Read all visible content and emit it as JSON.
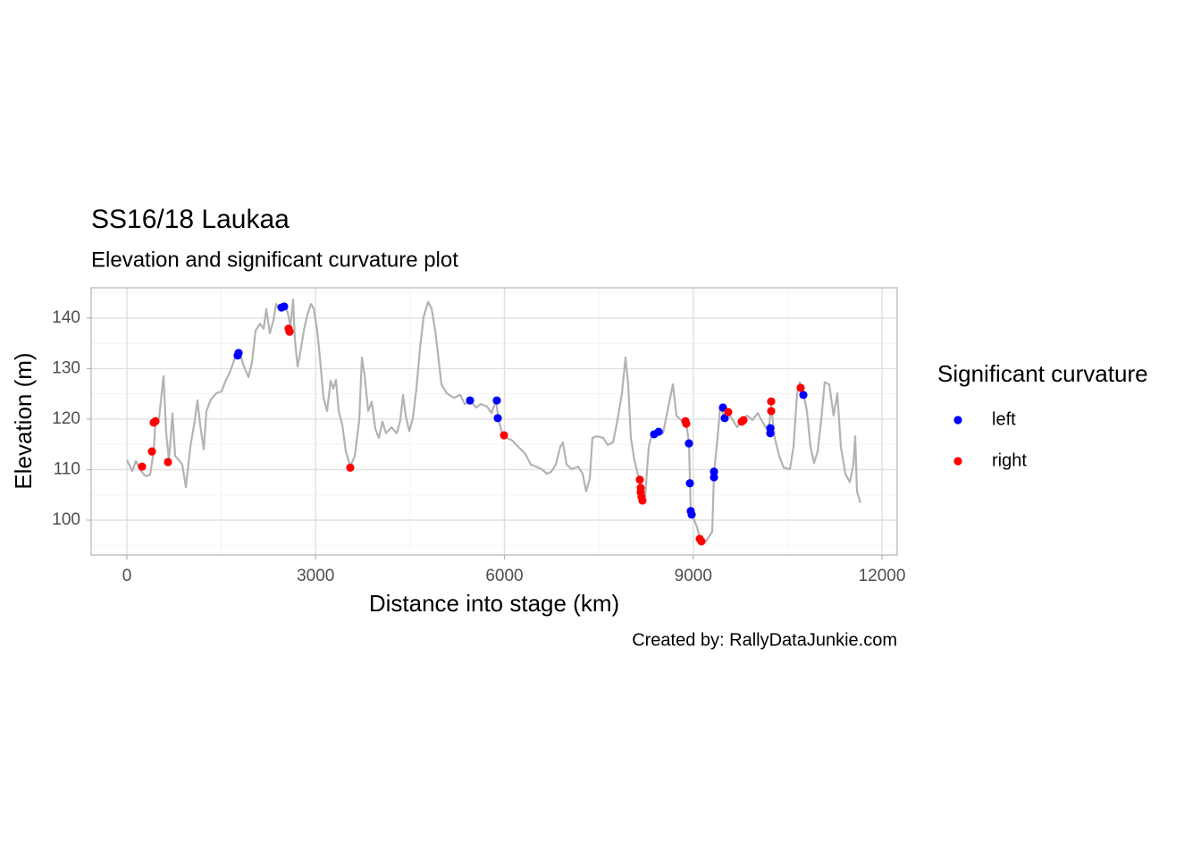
{
  "chart_data": {
    "type": "line",
    "title": "SS16/18 Laukaa",
    "subtitle": "Elevation and significant curvature plot",
    "caption": "Created by: RallyDataJunkie.com",
    "x_label": "Distance into stage (km)",
    "y_label": "Elevation (m)",
    "legend_title": "Significant curvature",
    "legend_position": "right",
    "grid": true,
    "xlim": [
      -568,
      12241
    ],
    "ylim": [
      93.1,
      146.0
    ],
    "xticks": [
      0,
      3000,
      6000,
      9000,
      12000
    ],
    "yticks": [
      100,
      110,
      120,
      130,
      140
    ],
    "xminor": [
      1500,
      4500,
      7500,
      10500
    ],
    "yminor": [
      95,
      105,
      115,
      125,
      135,
      145
    ],
    "profile": {
      "color": "#b3b3b3",
      "x": [
        0,
        85,
        142,
        227,
        298,
        369,
        426,
        454,
        511,
        582,
        625,
        667,
        696,
        724,
        767,
        824,
        880,
        937,
        1008,
        1079,
        1122,
        1165,
        1221,
        1264,
        1335,
        1420,
        1505,
        1576,
        1647,
        1718,
        1789,
        1860,
        1931,
        1988,
        2045,
        2116,
        2173,
        2215,
        2272,
        2329,
        2372,
        2428,
        2499,
        2556,
        2599,
        2641,
        2670,
        2712,
        2755,
        2812,
        2869,
        2926,
        2968,
        3025,
        3067,
        3124,
        3181,
        3238,
        3280,
        3323,
        3366,
        3422,
        3479,
        3550,
        3621,
        3692,
        3735,
        3777,
        3834,
        3891,
        3948,
        4005,
        4062,
        4118,
        4203,
        4289,
        4346,
        4388,
        4431,
        4488,
        4544,
        4601,
        4658,
        4715,
        4786,
        4843,
        4900,
        4942,
        4999,
        5084,
        5198,
        5297,
        5368,
        5467,
        5553,
        5624,
        5723,
        5794,
        5865,
        5908,
        5964,
        6035,
        6121,
        6220,
        6334,
        6419,
        6504,
        6589,
        6674,
        6746,
        6817,
        6888,
        6930,
        6987,
        7072,
        7172,
        7243,
        7299,
        7356,
        7399,
        7470,
        7569,
        7640,
        7725,
        7796,
        7867,
        7924,
        7966,
        8009,
        8065,
        8151,
        8179,
        8236,
        8293,
        8349,
        8435,
        8520,
        8605,
        8676,
        8733,
        8804,
        8889,
        8932,
        8960,
        9003,
        9060,
        9117,
        9202,
        9301,
        9330,
        9386,
        9429,
        9486,
        9557,
        9628,
        9699,
        9770,
        9855,
        9940,
        10026,
        10125,
        10196,
        10239,
        10296,
        10367,
        10438,
        10537,
        10594,
        10650,
        10693,
        10750,
        10807,
        10863,
        10920,
        10977,
        11034,
        11090,
        11161,
        11232,
        11289,
        11346,
        11417,
        11488,
        11545,
        11574,
        11602,
        11659
      ],
      "values": [
        111.9,
        109.7,
        111.7,
        109.7,
        108.7,
        109,
        113.6,
        119.8,
        120.2,
        128.5,
        117.2,
        111.9,
        116.3,
        121.1,
        112.7,
        111.9,
        111,
        106.5,
        114.5,
        119.8,
        123.7,
        118.9,
        114,
        121.6,
        123.9,
        125.1,
        125.5,
        127.8,
        129.6,
        132.2,
        133.3,
        130.4,
        128.3,
        131.3,
        137.5,
        138.9,
        137.9,
        141.8,
        137,
        139.6,
        142.8,
        141.9,
        142.8,
        141.1,
        138.4,
        143.7,
        135.8,
        130.4,
        133.1,
        137.5,
        140.7,
        142.8,
        141.9,
        137.5,
        132.2,
        124.2,
        121.6,
        127.6,
        126,
        127.8,
        121.6,
        118.9,
        113.6,
        110.6,
        112.7,
        119.8,
        132.2,
        128.7,
        121.6,
        123.4,
        118.1,
        116.3,
        119.5,
        117.2,
        118.4,
        117.2,
        119.8,
        124.8,
        120.7,
        117.6,
        120.2,
        126,
        134,
        140.2,
        143.2,
        141.9,
        137.5,
        133.1,
        126.9,
        125.1,
        124.2,
        124.8,
        123,
        123.4,
        122.3,
        123,
        122.5,
        121.2,
        123.7,
        119.8,
        117.2,
        116.3,
        115.8,
        114.5,
        113.1,
        111,
        110.6,
        110.1,
        109.2,
        109.6,
        111,
        114.5,
        115.4,
        111,
        110.1,
        110.6,
        109.2,
        105.7,
        108.3,
        116.3,
        116.6,
        116.3,
        114.9,
        115.4,
        119.8,
        125.1,
        132.2,
        126.9,
        116.3,
        111.9,
        107.5,
        104.2,
        104.8,
        114.5,
        117.2,
        117.7,
        117.2,
        122.5,
        126.9,
        120.7,
        119.8,
        119.1,
        115.4,
        101.6,
        100.4,
        98.6,
        95.9,
        95.8,
        97.7,
        109.2,
        116.3,
        122.5,
        120.7,
        121.2,
        119.8,
        118.4,
        119.8,
        120.7,
        119.8,
        121.2,
        118.9,
        117.6,
        122.5,
        116.3,
        112.7,
        110.4,
        110.1,
        114.5,
        125.1,
        127.3,
        125.1,
        121.6,
        114.5,
        111.3,
        113.6,
        119.8,
        127.3,
        126.9,
        120.7,
        125.1,
        114.5,
        109.2,
        107.5,
        111,
        116.6,
        105.7,
        103.4
      ]
    },
    "series": [
      {
        "name": "left",
        "color": "#0000ff",
        "x": [
          1761,
          1775,
          2457,
          2499,
          5453,
          5879,
          5894,
          8379,
          8450,
          8932,
          8947,
          8961,
          8975,
          9330,
          9330,
          9472,
          9500,
          10225,
          10225,
          10750
        ],
        "values": [
          132.6,
          133.1,
          142.1,
          142.3,
          123.7,
          123.7,
          120.2,
          117,
          117.5,
          115.2,
          107.3,
          101.8,
          101.1,
          109.6,
          108.5,
          122.3,
          120.2,
          118.2,
          117.2,
          124.8
        ]
      },
      {
        "name": "right",
        "color": "#ff0000",
        "x": [
          241,
          398,
          426,
          454,
          653,
          2570,
          2585,
          3550,
          5993,
          8151,
          8165,
          8165,
          8179,
          8193,
          8876,
          8889,
          9103,
          9131,
          9557,
          9770,
          9798,
          10239,
          10239,
          10707
        ],
        "values": [
          110.6,
          113.6,
          119.3,
          119.6,
          111.5,
          137.9,
          137.3,
          110.4,
          116.8,
          108,
          106.4,
          105.5,
          104.6,
          103.9,
          119.6,
          119.1,
          96.3,
          95.8,
          121.4,
          119.5,
          119.8,
          123.5,
          121.6,
          126.2
        ]
      }
    ]
  }
}
